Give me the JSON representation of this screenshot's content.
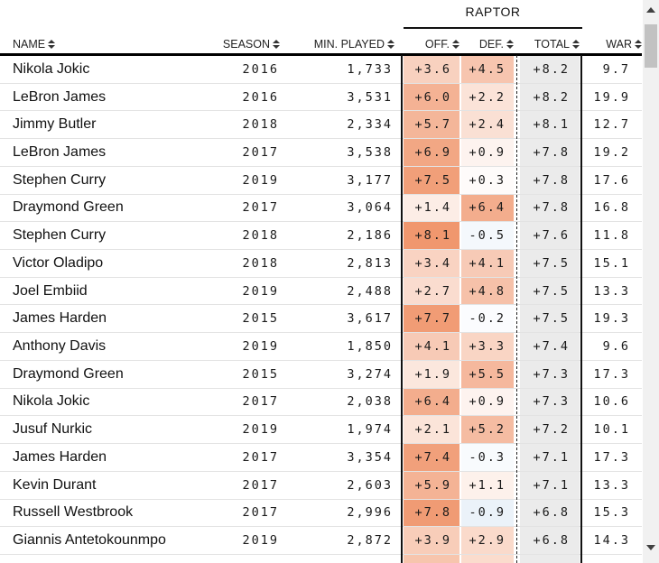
{
  "header": {
    "group_label": "RAPTOR",
    "columns": [
      {
        "key": "name",
        "label": "NAME"
      },
      {
        "key": "season",
        "label": "SEASON"
      },
      {
        "key": "min_played",
        "label": "MIN. PLAYED"
      },
      {
        "key": "off",
        "label": "OFF."
      },
      {
        "key": "def",
        "label": "DEF."
      },
      {
        "key": "total",
        "label": "TOTAL"
      },
      {
        "key": "war",
        "label": "WAR"
      }
    ]
  },
  "rows": [
    {
      "name": "Nikola Jokic",
      "season": "2016",
      "min_played": "1,733",
      "off": "+3.6",
      "def": "+4.5",
      "total": "+8.2",
      "war": "9.7"
    },
    {
      "name": "LeBron James",
      "season": "2016",
      "min_played": "3,531",
      "off": "+6.0",
      "def": "+2.2",
      "total": "+8.2",
      "war": "19.9"
    },
    {
      "name": "Jimmy Butler",
      "season": "2018",
      "min_played": "2,334",
      "off": "+5.7",
      "def": "+2.4",
      "total": "+8.1",
      "war": "12.7"
    },
    {
      "name": "LeBron James",
      "season": "2017",
      "min_played": "3,538",
      "off": "+6.9",
      "def": "+0.9",
      "total": "+7.8",
      "war": "19.2"
    },
    {
      "name": "Stephen Curry",
      "season": "2019",
      "min_played": "3,177",
      "off": "+7.5",
      "def": "+0.3",
      "total": "+7.8",
      "war": "17.6"
    },
    {
      "name": "Draymond Green",
      "season": "2017",
      "min_played": "3,064",
      "off": "+1.4",
      "def": "+6.4",
      "total": "+7.8",
      "war": "16.8"
    },
    {
      "name": "Stephen Curry",
      "season": "2018",
      "min_played": "2,186",
      "off": "+8.1",
      "def": "-0.5",
      "total": "+7.6",
      "war": "11.8"
    },
    {
      "name": "Victor Oladipo",
      "season": "2018",
      "min_played": "2,813",
      "off": "+3.4",
      "def": "+4.1",
      "total": "+7.5",
      "war": "15.1"
    },
    {
      "name": "Joel Embiid",
      "season": "2019",
      "min_played": "2,488",
      "off": "+2.7",
      "def": "+4.8",
      "total": "+7.5",
      "war": "13.3"
    },
    {
      "name": "James Harden",
      "season": "2015",
      "min_played": "3,617",
      "off": "+7.7",
      "def": "-0.2",
      "total": "+7.5",
      "war": "19.3"
    },
    {
      "name": "Anthony Davis",
      "season": "2019",
      "min_played": "1,850",
      "off": "+4.1",
      "def": "+3.3",
      "total": "+7.4",
      "war": "9.6"
    },
    {
      "name": "Draymond Green",
      "season": "2015",
      "min_played": "3,274",
      "off": "+1.9",
      "def": "+5.5",
      "total": "+7.3",
      "war": "17.3"
    },
    {
      "name": "Nikola Jokic",
      "season": "2017",
      "min_played": "2,038",
      "off": "+6.4",
      "def": "+0.9",
      "total": "+7.3",
      "war": "10.6"
    },
    {
      "name": "Jusuf Nurkic",
      "season": "2019",
      "min_played": "1,974",
      "off": "+2.1",
      "def": "+5.2",
      "total": "+7.2",
      "war": "10.1"
    },
    {
      "name": "James Harden",
      "season": "2017",
      "min_played": "3,354",
      "off": "+7.4",
      "def": "-0.3",
      "total": "+7.1",
      "war": "17.3"
    },
    {
      "name": "Kevin Durant",
      "season": "2017",
      "min_played": "2,603",
      "off": "+5.9",
      "def": "+1.1",
      "total": "+7.1",
      "war": "13.3"
    },
    {
      "name": "Russell Westbrook",
      "season": "2017",
      "min_played": "2,996",
      "off": "+7.8",
      "def": "-0.9",
      "total": "+6.8",
      "war": "15.3"
    },
    {
      "name": "Giannis Antetokounmpo",
      "season": "2019",
      "min_played": "2,872",
      "off": "+3.9",
      "def": "+2.9",
      "total": "+6.8",
      "war": "14.3"
    }
  ],
  "partial_row": {
    "off_color": "#f7c5ad",
    "def_color": "#fbdccd",
    "total_color": "#ebebeb"
  },
  "colors": {
    "positive_max": "#ef9267",
    "negative_max": "#4687c8",
    "scale_abs_max": 8.5,
    "total_cell": "#ebebeb",
    "header_rule": "#000000",
    "row_divider": "#e3e3e3",
    "scrollbar_track": "#f1f1f1",
    "scrollbar_thumb": "#c2c2c2"
  },
  "icons": {
    "sort": "sort-arrows-icon",
    "scroll_up": "triangle-up",
    "scroll_down": "triangle-down"
  }
}
